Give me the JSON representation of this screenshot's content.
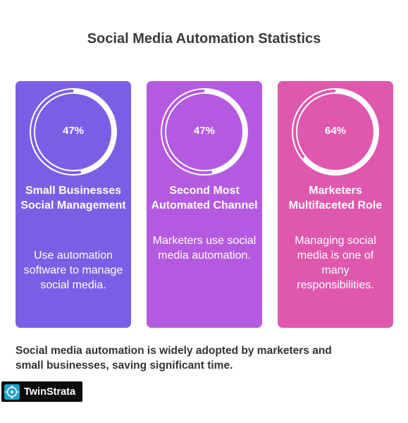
{
  "title": "Social Media Automation Statistics",
  "cards": [
    {
      "percent": "47%",
      "fill_fraction": 0.47,
      "heading": "Small Businesses Social Management",
      "description": "Use automation software to manage social media.",
      "color": "#7a5fe6"
    },
    {
      "percent": "47%",
      "fill_fraction": 0.47,
      "heading": "Second Most Automated Channel",
      "description": "Marketers use social media automation.",
      "color": "#b45ae0"
    },
    {
      "percent": "64%",
      "fill_fraction": 0.64,
      "heading": "Marketers Multifaceted Role",
      "description": "Managing social media is one of many responsibilities.",
      "color": "#df58ad"
    }
  ],
  "summary": "Social media automation is widely adopted by marketers and small businesses, saving significant time.",
  "logo": {
    "name": "TwinStrata",
    "icon": "twinstrata-logo-icon"
  }
}
